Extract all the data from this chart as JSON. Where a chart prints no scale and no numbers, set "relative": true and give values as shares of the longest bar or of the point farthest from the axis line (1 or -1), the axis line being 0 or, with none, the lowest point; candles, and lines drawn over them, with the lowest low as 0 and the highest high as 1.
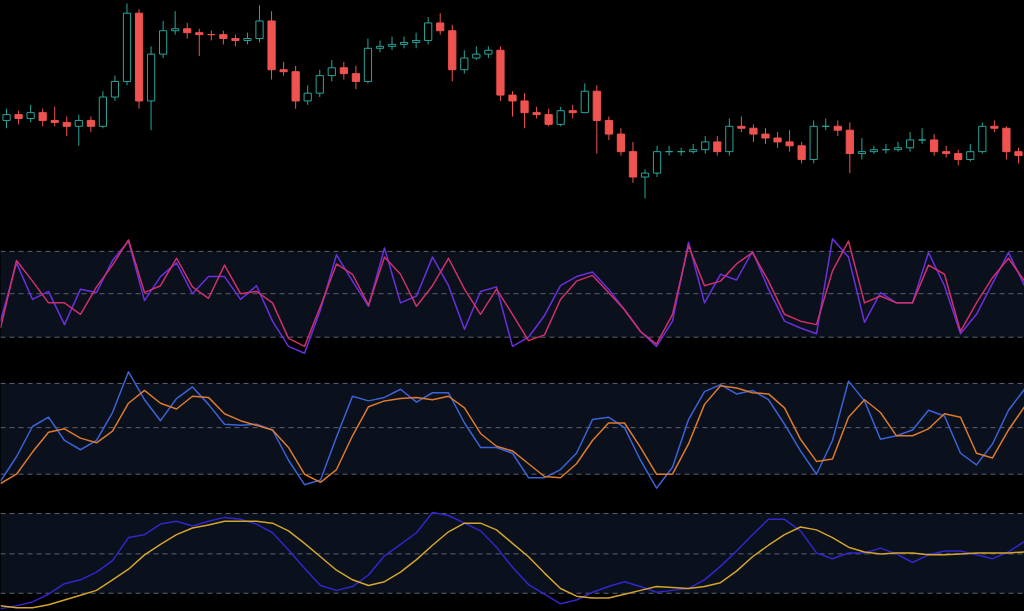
{
  "chart_data": [
    {
      "type": "candlestick",
      "relative": true,
      "categories": [
        null,
        null,
        null,
        null,
        null,
        null,
        null,
        null,
        null,
        null,
        null,
        null,
        null,
        null,
        null,
        null,
        null,
        null,
        null,
        null,
        null,
        null,
        null,
        null,
        null,
        null,
        null,
        null,
        null,
        null,
        null,
        null,
        null,
        null,
        null,
        null,
        null,
        null,
        null,
        null,
        null,
        null,
        null,
        null,
        null,
        null,
        null,
        null,
        null,
        null,
        null,
        null,
        null,
        null,
        null,
        null,
        null,
        null,
        null,
        null,
        null,
        null,
        null,
        null,
        null,
        null,
        null,
        null,
        null,
        null,
        null,
        null,
        null,
        null,
        null,
        null,
        null,
        null,
        null,
        null,
        null,
        null,
        null,
        null,
        null
      ],
      "ohlc": [
        [
          0.4,
          0.46,
          0.36,
          0.43
        ],
        [
          0.43,
          0.45,
          0.38,
          0.41
        ],
        [
          0.41,
          0.48,
          0.39,
          0.44
        ],
        [
          0.44,
          0.46,
          0.37,
          0.4
        ],
        [
          0.4,
          0.47,
          0.37,
          0.39
        ],
        [
          0.39,
          0.42,
          0.32,
          0.37
        ],
        [
          0.37,
          0.43,
          0.27,
          0.4
        ],
        [
          0.4,
          0.42,
          0.34,
          0.37
        ],
        [
          0.37,
          0.55,
          0.36,
          0.52
        ],
        [
          0.52,
          0.63,
          0.5,
          0.6
        ],
        [
          0.6,
          1.0,
          0.58,
          0.95
        ],
        [
          0.95,
          0.97,
          0.46,
          0.5
        ],
        [
          0.5,
          0.78,
          0.35,
          0.74
        ],
        [
          0.74,
          0.91,
          0.72,
          0.86
        ],
        [
          0.86,
          0.96,
          0.84,
          0.87
        ],
        [
          0.87,
          0.9,
          0.82,
          0.85
        ],
        [
          0.85,
          0.87,
          0.73,
          0.84
        ],
        [
          0.84,
          0.86,
          0.81,
          0.84
        ],
        [
          0.84,
          0.86,
          0.79,
          0.82
        ],
        [
          0.82,
          0.84,
          0.78,
          0.81
        ],
        [
          0.81,
          0.85,
          0.79,
          0.82
        ],
        [
          0.82,
          0.99,
          0.8,
          0.91
        ],
        [
          0.91,
          0.96,
          0.61,
          0.66
        ],
        [
          0.66,
          0.7,
          0.63,
          0.65
        ],
        [
          0.65,
          0.68,
          0.46,
          0.5
        ],
        [
          0.5,
          0.58,
          0.48,
          0.54
        ],
        [
          0.54,
          0.66,
          0.52,
          0.63
        ],
        [
          0.63,
          0.71,
          0.6,
          0.67
        ],
        [
          0.67,
          0.7,
          0.61,
          0.64
        ],
        [
          0.64,
          0.68,
          0.56,
          0.6
        ],
        [
          0.6,
          0.82,
          0.59,
          0.77
        ],
        [
          0.77,
          0.81,
          0.75,
          0.78
        ],
        [
          0.78,
          0.83,
          0.76,
          0.79
        ],
        [
          0.79,
          0.83,
          0.77,
          0.8
        ],
        [
          0.8,
          0.85,
          0.77,
          0.81
        ],
        [
          0.81,
          0.93,
          0.79,
          0.9
        ],
        [
          0.9,
          0.95,
          0.84,
          0.86
        ],
        [
          0.86,
          0.89,
          0.6,
          0.66
        ],
        [
          0.66,
          0.76,
          0.64,
          0.72
        ],
        [
          0.72,
          0.78,
          0.71,
          0.74
        ],
        [
          0.74,
          0.78,
          0.72,
          0.76
        ],
        [
          0.76,
          0.78,
          0.5,
          0.53
        ],
        [
          0.53,
          0.55,
          0.42,
          0.5
        ],
        [
          0.5,
          0.54,
          0.36,
          0.44
        ],
        [
          0.44,
          0.47,
          0.41,
          0.43
        ],
        [
          0.43,
          0.46,
          0.37,
          0.38
        ],
        [
          0.38,
          0.47,
          0.37,
          0.45
        ],
        [
          0.45,
          0.48,
          0.41,
          0.44
        ],
        [
          0.44,
          0.59,
          0.44,
          0.55
        ],
        [
          0.55,
          0.58,
          0.23,
          0.4
        ],
        [
          0.4,
          0.42,
          0.3,
          0.33
        ],
        [
          0.33,
          0.36,
          0.22,
          0.24
        ],
        [
          0.24,
          0.29,
          0.08,
          0.11
        ],
        [
          0.11,
          0.15,
          0.0,
          0.13
        ],
        [
          0.13,
          0.27,
          0.11,
          0.24
        ],
        [
          0.24,
          0.27,
          0.22,
          0.24
        ],
        [
          0.24,
          0.26,
          0.22,
          0.24
        ],
        [
          0.24,
          0.28,
          0.23,
          0.25
        ],
        [
          0.25,
          0.32,
          0.23,
          0.29
        ],
        [
          0.29,
          0.32,
          0.22,
          0.24
        ],
        [
          0.24,
          0.41,
          0.22,
          0.37
        ],
        [
          0.37,
          0.42,
          0.34,
          0.36
        ],
        [
          0.36,
          0.38,
          0.29,
          0.33
        ],
        [
          0.33,
          0.36,
          0.28,
          0.31
        ],
        [
          0.31,
          0.34,
          0.26,
          0.29
        ],
        [
          0.29,
          0.35,
          0.24,
          0.27
        ],
        [
          0.27,
          0.29,
          0.18,
          0.2
        ],
        [
          0.2,
          0.4,
          0.18,
          0.37
        ],
        [
          0.37,
          0.41,
          0.35,
          0.37
        ],
        [
          0.37,
          0.4,
          0.32,
          0.35
        ],
        [
          0.35,
          0.39,
          0.13,
          0.23
        ],
        [
          0.23,
          0.31,
          0.2,
          0.24
        ],
        [
          0.24,
          0.27,
          0.23,
          0.25
        ],
        [
          0.25,
          0.28,
          0.23,
          0.25
        ],
        [
          0.25,
          0.29,
          0.24,
          0.26
        ],
        [
          0.26,
          0.34,
          0.24,
          0.3
        ],
        [
          0.3,
          0.36,
          0.28,
          0.3
        ],
        [
          0.3,
          0.33,
          0.22,
          0.24
        ],
        [
          0.24,
          0.27,
          0.21,
          0.23
        ],
        [
          0.23,
          0.25,
          0.17,
          0.2
        ],
        [
          0.2,
          0.28,
          0.19,
          0.24
        ],
        [
          0.24,
          0.39,
          0.23,
          0.37
        ],
        [
          0.37,
          0.4,
          0.34,
          0.36
        ],
        [
          0.36,
          0.37,
          0.2,
          0.24
        ],
        [
          0.24,
          0.26,
          0.18,
          0.22
        ]
      ],
      "colors": [
        "#26a69a",
        "#ef5350",
        "#26a69a",
        "#ef5350",
        "#ef5350",
        "#ef5350",
        "#26a69a",
        "#ef5350",
        "#26a69a",
        "#26a69a",
        "#26a69a",
        "#ef5350",
        "#26a69a",
        "#26a69a",
        "#26a69a",
        "#ef5350",
        "#ef5350",
        "#ef5350",
        "#ef5350",
        "#ef5350",
        "#26a69a",
        "#26a69a",
        "#ef5350",
        "#ef5350",
        "#ef5350",
        "#26a69a",
        "#26a69a",
        "#26a69a",
        "#ef5350",
        "#ef5350",
        "#26a69a",
        "#26a69a",
        "#26a69a",
        "#26a69a",
        "#26a69a",
        "#26a69a",
        "#ef5350",
        "#ef5350",
        "#26a69a",
        "#26a69a",
        "#26a69a",
        "#ef5350",
        "#ef5350",
        "#ef5350",
        "#ef5350",
        "#ef5350",
        "#26a69a",
        "#ef5350",
        "#26a69a",
        "#ef5350",
        "#ef5350",
        "#ef5350",
        "#ef5350",
        "#26a69a",
        "#26a69a",
        "#26a69a",
        "#26a69a",
        "#26a69a",
        "#26a69a",
        "#ef5350",
        "#26a69a",
        "#ef5350",
        "#ef5350",
        "#ef5350",
        "#ef5350",
        "#ef5350",
        "#ef5350",
        "#26a69a",
        "#26a69a",
        "#ef5350",
        "#ef5350",
        "#26a69a",
        "#26a69a",
        "#26a69a",
        "#26a69a",
        "#26a69a",
        "#26a69a",
        "#ef5350",
        "#ef5350",
        "#ef5350",
        "#26a69a",
        "#26a69a",
        "#ef5350",
        "#ef5350",
        "#ef5350"
      ]
    },
    {
      "type": "line",
      "relative": true,
      "categories": [
        null,
        null,
        null,
        null,
        null,
        null,
        null,
        null,
        null,
        null,
        null,
        null,
        null,
        null,
        null,
        null,
        null,
        null,
        null,
        null,
        null,
        null,
        null,
        null,
        null,
        null,
        null,
        null,
        null,
        null,
        null,
        null,
        null,
        null,
        null,
        null,
        null,
        null,
        null,
        null,
        null,
        null,
        null,
        null,
        null,
        null,
        null,
        null,
        null,
        null,
        null,
        null,
        null,
        null,
        null,
        null,
        null,
        null,
        null,
        null,
        null,
        null,
        null,
        null,
        null
      ],
      "bands": [
        {
          "axis": "y",
          "from": 0.14,
          "to": 0.89,
          "color": "#0a101c"
        }
      ],
      "ref_lines": [
        {
          "axis": "y",
          "value": 0.89,
          "color": "#5d6270",
          "line_style": "dashed"
        },
        {
          "axis": "y",
          "value": 0.52,
          "color": "#5d6270",
          "line_style": "dashed"
        },
        {
          "axis": "y",
          "value": 0.14,
          "color": "#5d6270",
          "line_style": "dashed"
        }
      ],
      "series": [
        {
          "color": "#6a30e0",
          "values": [
            0.28,
            0.79,
            0.47,
            0.54,
            0.25,
            0.56,
            0.53,
            0.81,
            0.98,
            0.46,
            0.67,
            0.79,
            0.52,
            0.67,
            0.67,
            0.47,
            0.59,
            0.28,
            0.06,
            0.0,
            0.38,
            0.86,
            0.63,
            0.41,
            0.92,
            0.44,
            0.5,
            0.84,
            0.59,
            0.21,
            0.54,
            0.58,
            0.06,
            0.14,
            0.33,
            0.59,
            0.67,
            0.71,
            0.56,
            0.38,
            0.19,
            0.06,
            0.28,
            0.97,
            0.44,
            0.69,
            0.64,
            0.89,
            0.56,
            0.28,
            0.22,
            0.17,
            1.0,
            0.84,
            0.27,
            0.53,
            0.44,
            0.44,
            0.88,
            0.59,
            0.17,
            0.34,
            0.61,
            0.88,
            0.59
          ]
        },
        {
          "color": "#d0306a",
          "values": [
            0.22,
            0.81,
            0.63,
            0.44,
            0.44,
            0.34,
            0.58,
            0.77,
            0.99,
            0.53,
            0.59,
            0.83,
            0.58,
            0.48,
            0.77,
            0.52,
            0.54,
            0.44,
            0.13,
            0.06,
            0.41,
            0.78,
            0.69,
            0.42,
            0.84,
            0.69,
            0.41,
            0.59,
            0.83,
            0.56,
            0.34,
            0.56,
            0.34,
            0.11,
            0.16,
            0.47,
            0.63,
            0.68,
            0.53,
            0.38,
            0.19,
            0.08,
            0.34,
            0.94,
            0.59,
            0.63,
            0.78,
            0.88,
            0.63,
            0.34,
            0.28,
            0.25,
            0.72,
            0.98,
            0.44,
            0.5,
            0.44,
            0.44,
            0.77,
            0.69,
            0.19,
            0.44,
            0.66,
            0.83,
            0.63
          ]
        }
      ]
    },
    {
      "type": "line",
      "relative": true,
      "categories": [
        null,
        null,
        null,
        null,
        null,
        null,
        null,
        null,
        null,
        null,
        null,
        null,
        null,
        null,
        null,
        null,
        null,
        null,
        null,
        null,
        null,
        null,
        null,
        null,
        null,
        null,
        null,
        null,
        null,
        null,
        null,
        null,
        null,
        null,
        null,
        null,
        null,
        null,
        null,
        null,
        null,
        null,
        null,
        null,
        null,
        null,
        null,
        null,
        null,
        null,
        null,
        null,
        null,
        null,
        null,
        null,
        null,
        null,
        null,
        null,
        null,
        null,
        null,
        null,
        null
      ],
      "bands": [
        {
          "axis": "y",
          "from": 0.12,
          "to": 0.9,
          "color": "#0a101c"
        }
      ],
      "ref_lines": [
        {
          "axis": "y",
          "value": 0.9,
          "color": "#5d6270",
          "line_style": "dashed"
        },
        {
          "axis": "y",
          "value": 0.52,
          "color": "#5d6270",
          "line_style": "dashed"
        },
        {
          "axis": "y",
          "value": 0.12,
          "color": "#5d6270",
          "line_style": "dashed"
        }
      ],
      "series": [
        {
          "color": "#3b63d8",
          "values": [
            0.06,
            0.27,
            0.53,
            0.61,
            0.41,
            0.33,
            0.41,
            0.65,
            1.0,
            0.76,
            0.58,
            0.77,
            0.87,
            0.72,
            0.55,
            0.54,
            0.55,
            0.5,
            0.24,
            0.03,
            0.07,
            0.44,
            0.79,
            0.75,
            0.78,
            0.85,
            0.74,
            0.82,
            0.82,
            0.56,
            0.35,
            0.35,
            0.3,
            0.09,
            0.09,
            0.16,
            0.3,
            0.59,
            0.61,
            0.52,
            0.24,
            0.0,
            0.18,
            0.59,
            0.83,
            0.89,
            0.81,
            0.84,
            0.76,
            0.55,
            0.32,
            0.12,
            0.41,
            0.92,
            0.75,
            0.42,
            0.45,
            0.5,
            0.67,
            0.62,
            0.3,
            0.2,
            0.38,
            0.67,
            0.85
          ]
        },
        {
          "color": "#dd7a2c",
          "values": [
            0.04,
            0.12,
            0.31,
            0.48,
            0.51,
            0.43,
            0.39,
            0.49,
            0.73,
            0.84,
            0.73,
            0.68,
            0.79,
            0.78,
            0.64,
            0.58,
            0.54,
            0.5,
            0.35,
            0.12,
            0.05,
            0.16,
            0.45,
            0.7,
            0.75,
            0.77,
            0.78,
            0.76,
            0.79,
            0.69,
            0.47,
            0.36,
            0.32,
            0.21,
            0.1,
            0.09,
            0.21,
            0.41,
            0.56,
            0.56,
            0.35,
            0.12,
            0.12,
            0.38,
            0.72,
            0.88,
            0.86,
            0.82,
            0.81,
            0.69,
            0.42,
            0.23,
            0.25,
            0.61,
            0.76,
            0.65,
            0.45,
            0.45,
            0.51,
            0.64,
            0.61,
            0.3,
            0.26,
            0.5,
            0.7
          ]
        }
      ]
    },
    {
      "type": "line",
      "relative": true,
      "categories": [
        null,
        null,
        null,
        null,
        null,
        null,
        null,
        null,
        null,
        null,
        null,
        null,
        null,
        null,
        null,
        null,
        null,
        null,
        null,
        null,
        null,
        null,
        null,
        null,
        null,
        null,
        null,
        null,
        null,
        null,
        null,
        null,
        null,
        null,
        null,
        null,
        null,
        null,
        null,
        null,
        null,
        null,
        null,
        null,
        null,
        null,
        null,
        null,
        null,
        null,
        null,
        null,
        null,
        null,
        null,
        null,
        null,
        null,
        null,
        null,
        null,
        null,
        null,
        null,
        null
      ],
      "bands": [
        {
          "axis": "y",
          "from": 0.16,
          "to": 0.99,
          "color": "#0a101c"
        }
      ],
      "ref_lines": [
        {
          "axis": "y",
          "value": 0.99,
          "color": "#5d6270",
          "line_style": "dashed"
        },
        {
          "axis": "y",
          "value": 0.57,
          "color": "#5d6270",
          "line_style": "dashed"
        },
        {
          "axis": "y",
          "value": 0.16,
          "color": "#5d6270",
          "line_style": "dashed"
        }
      ],
      "series": [
        {
          "color": "#3226cc",
          "values": [
            0.0,
            0.03,
            0.07,
            0.15,
            0.26,
            0.3,
            0.38,
            0.5,
            0.74,
            0.77,
            0.88,
            0.91,
            0.86,
            0.91,
            0.95,
            0.93,
            0.88,
            0.79,
            0.61,
            0.42,
            0.24,
            0.19,
            0.23,
            0.35,
            0.55,
            0.67,
            0.79,
            1.0,
            0.97,
            0.89,
            0.81,
            0.64,
            0.43,
            0.25,
            0.15,
            0.05,
            0.09,
            0.17,
            0.23,
            0.28,
            0.23,
            0.17,
            0.19,
            0.21,
            0.3,
            0.44,
            0.6,
            0.77,
            0.93,
            0.93,
            0.81,
            0.58,
            0.52,
            0.58,
            0.58,
            0.63,
            0.57,
            0.48,
            0.56,
            0.6,
            0.6,
            0.56,
            0.52,
            0.59,
            0.7
          ]
        },
        {
          "color": "#d4a52c",
          "values": [
            0.03,
            0.01,
            0.01,
            0.04,
            0.09,
            0.14,
            0.19,
            0.3,
            0.41,
            0.56,
            0.67,
            0.77,
            0.84,
            0.87,
            0.91,
            0.91,
            0.91,
            0.89,
            0.81,
            0.68,
            0.54,
            0.4,
            0.3,
            0.24,
            0.28,
            0.38,
            0.51,
            0.66,
            0.8,
            0.89,
            0.89,
            0.82,
            0.68,
            0.54,
            0.37,
            0.21,
            0.13,
            0.11,
            0.11,
            0.15,
            0.19,
            0.23,
            0.22,
            0.21,
            0.23,
            0.27,
            0.39,
            0.54,
            0.66,
            0.77,
            0.85,
            0.82,
            0.74,
            0.64,
            0.59,
            0.57,
            0.58,
            0.58,
            0.56,
            0.56,
            0.57,
            0.58,
            0.58,
            0.58,
            0.59
          ]
        }
      ]
    }
  ]
}
